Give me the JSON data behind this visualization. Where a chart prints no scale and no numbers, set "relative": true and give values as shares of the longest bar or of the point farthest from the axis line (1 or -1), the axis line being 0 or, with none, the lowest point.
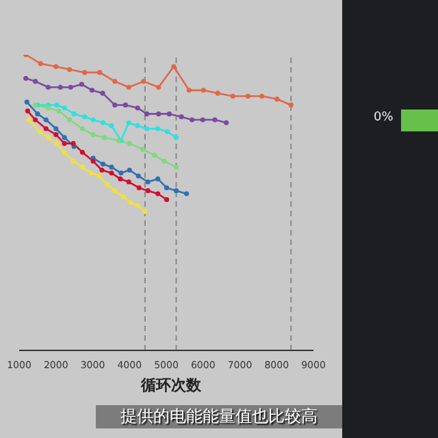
{
  "chart_data": {
    "type": "line",
    "xlabel": "循环次数",
    "relative": true,
    "xlim": [
      1000,
      9000
    ],
    "xticks": [
      1000,
      2000,
      3000,
      4000,
      5000,
      6000,
      7000,
      8000,
      9000
    ],
    "marker": "circle",
    "line_style": "solid",
    "tick_labels": "x",
    "series": [
      {
        "color": "#e0684a",
        "x": [
          1180,
          1580,
          2000,
          2370,
          2780,
          3190,
          3600,
          3980,
          4380,
          4790,
          5200,
          5620,
          6010,
          6400,
          6810,
          7220,
          7600,
          8010,
          8390
        ],
        "values": [
          1.0,
          0.97,
          0.96,
          0.95,
          0.94,
          0.94,
          0.91,
          0.89,
          0.91,
          0.89,
          0.96,
          0.88,
          0.88,
          0.87,
          0.86,
          0.86,
          0.86,
          0.85,
          0.83
        ]
      },
      {
        "color": "#7a4aa0",
        "x": [
          1180,
          1440,
          1790,
          2120,
          2400,
          2700,
          2980,
          3270,
          3600,
          3890,
          4220,
          4470,
          4790,
          5080,
          5410,
          5700,
          5990,
          6320,
          6630
        ],
        "values": [
          0.92,
          0.91,
          0.89,
          0.89,
          0.89,
          0.9,
          0.88,
          0.87,
          0.83,
          0.83,
          0.82,
          0.8,
          0.8,
          0.8,
          0.79,
          0.78,
          0.78,
          0.78,
          0.77
        ]
      },
      {
        "color": "#30e0e0",
        "x": [
          1500,
          1790,
          2020,
          2230,
          2490,
          2780,
          3010,
          3280,
          3510,
          3770,
          3980,
          4220,
          4470,
          4770,
          5030,
          5270
        ],
        "values": [
          0.83,
          0.83,
          0.83,
          0.82,
          0.8,
          0.79,
          0.78,
          0.77,
          0.76,
          0.71,
          0.77,
          0.76,
          0.75,
          0.75,
          0.74,
          0.72
        ]
      },
      {
        "color": "#80d880",
        "x": [
          1440,
          1790,
          2080,
          2370,
          2720,
          3010,
          3310,
          3710,
          4000,
          4360,
          4680,
          4940,
          5270
        ],
        "values": [
          0.83,
          0.82,
          0.81,
          0.78,
          0.75,
          0.73,
          0.72,
          0.71,
          0.7,
          0.68,
          0.66,
          0.64,
          0.62
        ]
      },
      {
        "color": "#3070b0",
        "x": [
          1210,
          1500,
          1730,
          2000,
          2230,
          2490,
          2720,
          3010,
          3280,
          3510,
          3770,
          4000,
          4240,
          4500,
          4770,
          5010,
          5270,
          5550
        ],
        "values": [
          0.84,
          0.8,
          0.78,
          0.75,
          0.72,
          0.69,
          null,
          0.65,
          0.63,
          0.62,
          0.6,
          0.61,
          0.59,
          0.57,
          0.58,
          0.55,
          0.54,
          0.53
        ]
      },
      {
        "color": "#d01030",
        "x": [
          1230,
          1440,
          1730,
          2000,
          2230,
          2470,
          2720,
          3010,
          3250,
          3510,
          3750,
          3980,
          4260,
          4500,
          4770,
          5010
        ],
        "values": [
          0.81,
          0.78,
          0.75,
          0.73,
          0.7,
          0.7,
          0.67,
          0.64,
          0.61,
          0.6,
          0.58,
          0.57,
          0.55,
          0.54,
          0.53,
          0.51
        ]
      },
      {
        "color": "#f0e040",
        "x": [
          1260,
          1560,
          1790,
          2020,
          2230,
          2470,
          2720,
          2960,
          3170,
          3400,
          3600,
          3830,
          4030,
          4220,
          4420
        ],
        "values": [
          0.78,
          0.74,
          0.72,
          0.7,
          0.67,
          0.64,
          0.62,
          0.6,
          0.59,
          0.56,
          0.54,
          0.52,
          0.5,
          0.49,
          0.47
        ]
      }
    ],
    "ref_lines": [
      {
        "axis": "x",
        "value": 4420,
        "color": "#888888",
        "line_style": "dashed"
      },
      {
        "axis": "x",
        "value": 5270,
        "color": "#888888",
        "line_style": "dashed"
      },
      {
        "axis": "x",
        "value": 8390,
        "color": "#888888",
        "line_style": "dashed"
      }
    ],
    "annotations": [
      "提供的电能能量值也比较高",
      "0%"
    ]
  }
}
